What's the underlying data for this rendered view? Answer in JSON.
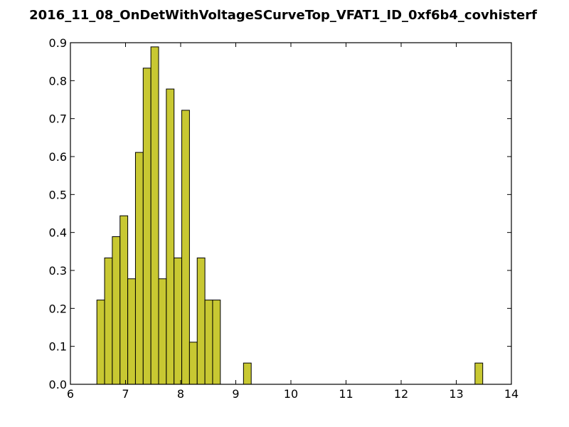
{
  "chart_data": {
    "type": "bar",
    "title": "2016_11_08_OnDetWithVoltageSCurveTop_VFAT1_ID_0xf6b4_covhisterf",
    "xlabel": "",
    "ylabel": "",
    "xlim": [
      6,
      14
    ],
    "ylim": [
      0,
      0.9
    ],
    "bar_width": 0.14,
    "bar_color": "#c8c832",
    "x_ticks": [
      "6",
      "7",
      "8",
      "9",
      "10",
      "11",
      "12",
      "13",
      "14"
    ],
    "y_ticks": [
      "0.0",
      "0.1",
      "0.2",
      "0.3",
      "0.4",
      "0.5",
      "0.6",
      "0.7",
      "0.8",
      "0.9"
    ],
    "bins_left": [
      6.48,
      6.62,
      6.76,
      6.9,
      7.04,
      7.18,
      7.32,
      7.46,
      7.6,
      7.74,
      7.88,
      8.02,
      8.16,
      8.3,
      8.44,
      8.58,
      9.14,
      13.34
    ],
    "values": [
      0.222,
      0.333,
      0.389,
      0.444,
      0.278,
      0.611,
      0.833,
      0.889,
      0.278,
      0.778,
      0.333,
      0.722,
      0.111,
      0.333,
      0.222,
      0.222,
      0.056,
      0.056
    ]
  }
}
